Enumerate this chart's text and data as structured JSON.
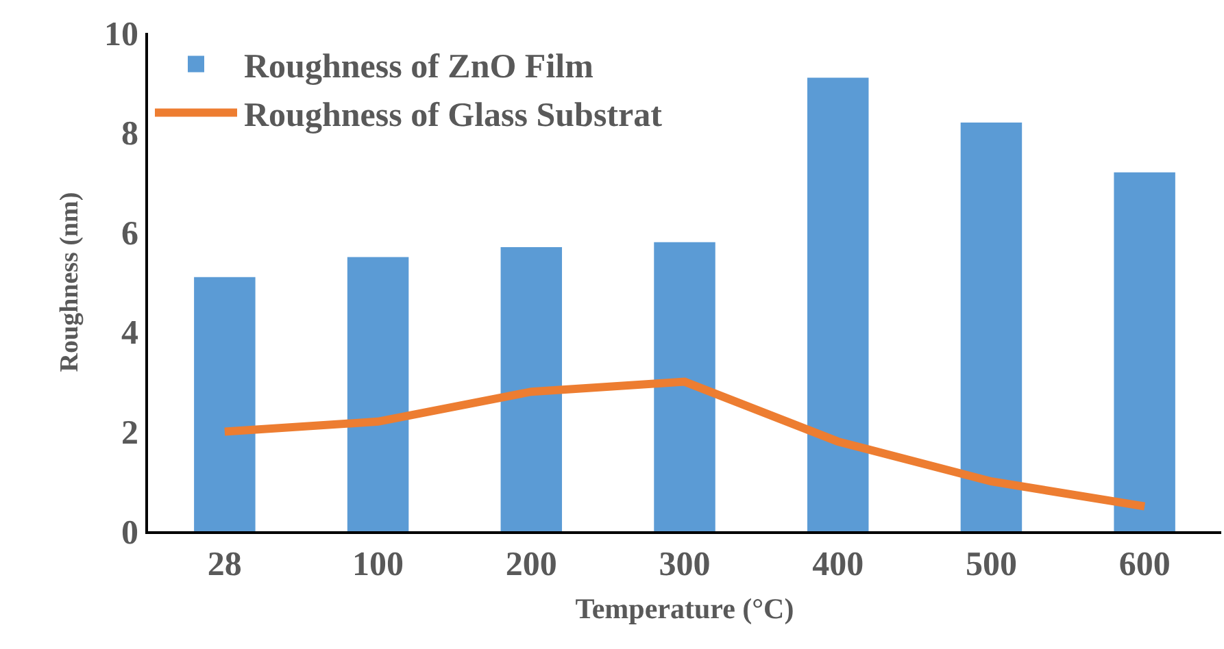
{
  "chart_data": {
    "type": "bar",
    "xlabel": "Temperature (°C)",
    "ylabel": "Roughness (nm)",
    "categories": [
      "28",
      "100",
      "200",
      "300",
      "400",
      "500",
      "600"
    ],
    "series": [
      {
        "name": "Roughness of ZnO Film",
        "color": "#5b9bd5",
        "values": [
          5.1,
          5.5,
          5.7,
          5.8,
          9.1,
          8.2,
          7.2
        ]
      },
      {
        "name": "Roughness of Glass Substrat",
        "type": "line",
        "color": "#ed7d31",
        "values": [
          2.0,
          2.2,
          2.8,
          3.0,
          1.8,
          1.0,
          0.5
        ]
      }
    ],
    "ylim": [
      0,
      10
    ],
    "yticks": [
      0,
      2,
      4,
      6,
      8,
      10
    ],
    "grid": false,
    "legend": "top left",
    "marker": "none",
    "line_style": "solid"
  }
}
